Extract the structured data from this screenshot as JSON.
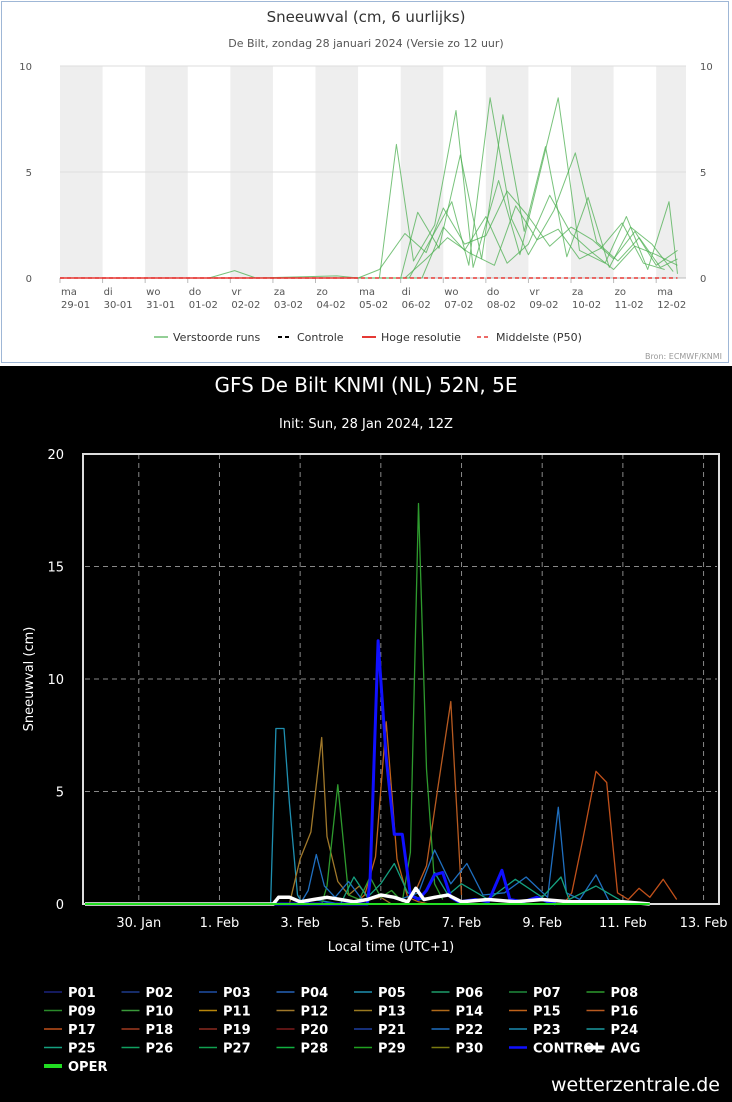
{
  "top_chart": {
    "title": "Sneeuwval (cm, 6 uurlijks)",
    "subtitle": "De Bilt, zondag 28 januari 2024 (Versie zo 12 uur)",
    "source": "Bron: ECMWF/KNMI",
    "colors": {
      "members": "#4caf50",
      "control": "#000000",
      "hires": "#e53935",
      "median": "#e53935",
      "band": "#eeeeee",
      "grid": "#dddddd"
    },
    "legend": [
      {
        "label": "Verstoorde runs",
        "style": "members"
      },
      {
        "label": "Controle",
        "style": "control"
      },
      {
        "label": "Hoge resolutie",
        "style": "hires"
      },
      {
        "label": "Middelste (P50)",
        "style": "median"
      }
    ],
    "day_ticks": [
      [
        "ma",
        "29-01"
      ],
      [
        "di",
        "30-01"
      ],
      [
        "wo",
        "31-01"
      ],
      [
        "do",
        "01-02"
      ],
      [
        "vr",
        "02-02"
      ],
      [
        "za",
        "03-02"
      ],
      [
        "zo",
        "04-02"
      ],
      [
        "ma",
        "05-02"
      ],
      [
        "di",
        "06-02"
      ],
      [
        "wo",
        "07-02"
      ],
      [
        "do",
        "08-02"
      ],
      [
        "vr",
        "09-02"
      ],
      [
        "za",
        "10-02"
      ],
      [
        "zo",
        "11-02"
      ],
      [
        "ma",
        "12-02"
      ]
    ]
  },
  "bottom_chart": {
    "title": "GFS De Bilt KNMI (NL) 52N, 5E",
    "subtitle": "Init: Sun, 28 Jan 2024, 12Z",
    "xlabel": "Local time (UTC+1)",
    "ylabel": "Sneeuwval (cm)",
    "x_ticks": [
      "30. Jan",
      "1. Feb",
      "3. Feb",
      "5. Feb",
      "7. Feb",
      "9. Feb",
      "11. Feb",
      "13. Feb"
    ],
    "watermark": "wetterzentrale.de",
    "legend": [
      {
        "name": "P01",
        "color": "#1a237e"
      },
      {
        "name": "P02",
        "color": "#1e3a8a"
      },
      {
        "name": "P03",
        "color": "#1f4fa6"
      },
      {
        "name": "P04",
        "color": "#2563b8"
      },
      {
        "name": "P05",
        "color": "#1f8fb0"
      },
      {
        "name": "P06",
        "color": "#1e9e6a"
      },
      {
        "name": "P07",
        "color": "#1f8a3c"
      },
      {
        "name": "P08",
        "color": "#2e9a2e"
      },
      {
        "name": "P09",
        "color": "#2a8a2a"
      },
      {
        "name": "P10",
        "color": "#3a9a3a"
      },
      {
        "name": "P11",
        "color": "#b8860b"
      },
      {
        "name": "P12",
        "color": "#a0782a"
      },
      {
        "name": "P13",
        "color": "#9a7a20"
      },
      {
        "name": "P14",
        "color": "#b06a1a"
      },
      {
        "name": "P15",
        "color": "#c0621a"
      },
      {
        "name": "P16",
        "color": "#b85a20"
      },
      {
        "name": "P17",
        "color": "#c0501a"
      },
      {
        "name": "P18",
        "color": "#a03a20"
      },
      {
        "name": "P19",
        "color": "#8a2a20"
      },
      {
        "name": "P20",
        "color": "#7a1a1a"
      },
      {
        "name": "P21",
        "color": "#1e3fa0"
      },
      {
        "name": "P22",
        "color": "#1f6fc0"
      },
      {
        "name": "P23",
        "color": "#1a8ab0"
      },
      {
        "name": "P24",
        "color": "#1a9aa0"
      },
      {
        "name": "P25",
        "color": "#15a080"
      },
      {
        "name": "P26",
        "color": "#10a060"
      },
      {
        "name": "P27",
        "color": "#10a050"
      },
      {
        "name": "P28",
        "color": "#10b040"
      },
      {
        "name": "P29",
        "color": "#20a020"
      },
      {
        "name": "P30",
        "color": "#7a7a10"
      },
      {
        "name": "CONTROL",
        "color": "#1010ff"
      },
      {
        "name": "AVG",
        "color": "#ffffff"
      },
      {
        "name": "OPER",
        "color": "#22dd22"
      }
    ]
  },
  "chart_data": [
    {
      "type": "line",
      "title": "Sneeuwval (cm, 6 uurlijks)",
      "subtitle": "De Bilt, zondag 28 januari 2024 (Versie zo 12 uur)",
      "x_unit": "days",
      "x_start_label": "ma 29-01",
      "ylim": [
        0,
        10
      ],
      "yticks": [
        0,
        5,
        10
      ],
      "grid": true,
      "legend_position": "bottom",
      "series": [
        {
          "name": "Verstoorde runs",
          "x": [
            0,
            3.5,
            4.1,
            4.6,
            6.5,
            7.0,
            7.5,
            8.1,
            8.6,
            9.0,
            9.5,
            10.0,
            10.5,
            11.0,
            11.5,
            12.0,
            12.5,
            13.0,
            13.5,
            14.0,
            14.5
          ],
          "y": [
            0,
            0,
            0.35,
            0,
            0.1,
            0,
            0.4,
            2.1,
            1.2,
            3.3,
            1.6,
            2.0,
            4.1,
            2.9,
            1.5,
            2.4,
            1.8,
            0.9,
            2.2,
            0.6,
            1.3
          ]
        },
        {
          "name": "Verstoorde runs",
          "x": [
            0,
            7.5,
            7.9,
            8.3,
            8.8,
            9.3,
            9.7,
            10.3,
            10.8,
            11.3,
            11.7,
            12.2,
            12.8,
            13.3,
            13.8,
            14.3,
            14.5
          ],
          "y": [
            0,
            0,
            6.3,
            0.8,
            2.5,
            7.9,
            0.5,
            4.6,
            1.1,
            5.2,
            8.5,
            1.3,
            0.7,
            2.9,
            0.4,
            3.6,
            0.2
          ]
        },
        {
          "name": "Verstoorde runs",
          "x": [
            0,
            8.0,
            8.4,
            8.9,
            9.4,
            9.9,
            10.4,
            10.9,
            11.4,
            11.9,
            12.4,
            12.9,
            13.4,
            13.9,
            14.4
          ],
          "y": [
            0,
            0,
            3.1,
            1.4,
            5.8,
            0.9,
            7.7,
            2.2,
            6.2,
            1.0,
            3.8,
            0.5,
            2.4,
            1.6,
            0.3
          ]
        },
        {
          "name": "Verstoorde runs",
          "x": [
            0,
            8.2,
            8.7,
            9.2,
            9.6,
            10.1,
            10.6,
            11.0,
            11.6,
            12.1,
            12.6,
            13.1,
            13.6,
            14.1,
            14.5
          ],
          "y": [
            0,
            0,
            1.8,
            3.6,
            0.6,
            8.5,
            2.8,
            1.1,
            3.2,
            5.9,
            1.7,
            0.8,
            1.9,
            0.5,
            0.9
          ]
        },
        {
          "name": "Verstoorde runs",
          "x": [
            0,
            8.5,
            9.0,
            9.5,
            10.0,
            10.5,
            11.0,
            11.5,
            12.0,
            12.5,
            13.0,
            13.5,
            14.0,
            14.5
          ],
          "y": [
            0,
            0,
            2.4,
            1.3,
            2.9,
            0.7,
            1.6,
            3.9,
            2.1,
            1.2,
            0.4,
            1.5,
            1.1,
            0.6
          ]
        },
        {
          "name": "Verstoorde runs",
          "x": [
            0,
            8.1,
            8.6,
            9.1,
            9.6,
            10.2,
            10.7,
            11.2,
            11.7,
            12.2,
            12.7,
            13.2,
            13.7,
            14.2
          ],
          "y": [
            0,
            0,
            0.9,
            1.9,
            1.2,
            0.6,
            3.4,
            1.8,
            2.3,
            0.9,
            1.4,
            2.6,
            0.7,
            0.4
          ]
        },
        {
          "name": "Controle",
          "x": [
            0,
            14.5
          ],
          "y": [
            0,
            0
          ]
        },
        {
          "name": "Hoge resolutie",
          "x": [
            0,
            7.0
          ],
          "y": [
            0,
            0
          ]
        },
        {
          "name": "Middelste (P50)",
          "x": [
            0,
            14.5
          ],
          "y": [
            0,
            0
          ]
        }
      ]
    },
    {
      "type": "line",
      "title": "GFS De Bilt KNMI (NL) 52N, 5E",
      "subtitle": "Init: Sun, 28 Jan 2024, 12Z",
      "xlabel": "Local time (UTC+1)",
      "ylabel": "Sneeuwval (cm)",
      "x_unit": "days",
      "x_start_label": "28 Jan 2024 12Z",
      "x_ticks": [
        "30. Jan",
        "1. Feb",
        "3. Feb",
        "5. Feb",
        "7. Feb",
        "9. Feb",
        "11. Feb",
        "13. Feb"
      ],
      "ylim": [
        0,
        20
      ],
      "yticks": [
        0,
        5,
        10,
        15,
        20
      ],
      "grid": true,
      "legend_position": "bottom",
      "series": [
        {
          "name": "P05",
          "x": [
            0,
            6.9,
            7.1,
            7.4,
            7.6,
            7.9,
            8.1,
            8.5,
            9.0,
            9.5,
            10.0
          ],
          "y": [
            0,
            0,
            7.8,
            7.8,
            4.5,
            0.4,
            0,
            0.2,
            0.1,
            0,
            0
          ]
        },
        {
          "name": "P12",
          "x": [
            0,
            7.6,
            8.0,
            8.4,
            8.8,
            9.0,
            9.4,
            9.8,
            10.2,
            10.6,
            11.0,
            11.4
          ],
          "y": [
            0,
            0,
            2.0,
            3.2,
            7.4,
            3.0,
            1.0,
            0.4,
            0.8,
            0.2,
            0.3,
            0
          ]
        },
        {
          "name": "P15",
          "x": [
            0,
            10.0,
            10.4,
            10.8,
            11.2,
            11.6,
            12.0,
            12.4,
            12.8
          ],
          "y": [
            0,
            0,
            0.4,
            2.1,
            8.1,
            2.0,
            0.3,
            0.1,
            0
          ]
        },
        {
          "name": "P16",
          "x": [
            0,
            12.0,
            12.3,
            12.7,
            13.1,
            13.6,
            14.0
          ],
          "y": [
            0,
            0,
            0.6,
            1.7,
            5.0,
            9.0,
            0.4
          ]
        },
        {
          "name": "P17",
          "x": [
            0,
            17.8,
            18.1,
            18.5,
            19.0,
            19.4,
            19.8,
            20.2,
            20.6,
            21.0,
            21.5,
            22.0
          ],
          "y": [
            0,
            0,
            0.5,
            2.8,
            5.9,
            5.4,
            0.5,
            0.2,
            0.7,
            0.3,
            1.1,
            0.2
          ]
        },
        {
          "name": "P08",
          "x": [
            0,
            8.8,
            9.0,
            9.4,
            9.8,
            10.2,
            10.6,
            11.0,
            11.4,
            11.8,
            12.1,
            12.4,
            12.7,
            13.0,
            13.3
          ],
          "y": [
            0,
            0,
            0.8,
            5.3,
            0.4,
            0.2,
            1.2,
            0.3,
            0.6,
            0.1,
            2.3,
            17.8,
            6.0,
            0.9,
            0.2
          ]
        },
        {
          "name": "P22",
          "x": [
            0,
            8.0,
            8.3,
            8.6,
            8.9,
            9.3,
            9.8,
            10.3,
            11.0,
            11.7,
            12.4,
            13.0,
            13.6,
            14.2,
            14.8,
            15.6,
            16.4,
            17.2,
            17.6,
            17.9,
            18.4,
            19.0,
            19.5
          ],
          "y": [
            0,
            0,
            0.6,
            2.2,
            0.8,
            0.3,
            1.0,
            0.2,
            0.4,
            0.2,
            0.5,
            2.4,
            0.9,
            1.8,
            0.4,
            0.5,
            1.2,
            0.3,
            4.3,
            0.5,
            0.2,
            1.3,
            0.1
          ]
        },
        {
          "name": "P25",
          "x": [
            0,
            9.5,
            10.0,
            10.5,
            11.0,
            11.5,
            12.0,
            12.5,
            13.0,
            13.5,
            14.0,
            15.0,
            16.0,
            17.0,
            17.7,
            18.0,
            19.0,
            20.0
          ],
          "y": [
            0,
            0,
            1.2,
            0.3,
            0.9,
            1.8,
            0.5,
            0.2,
            1.4,
            0.4,
            0.9,
            0.2,
            1.1,
            0.3,
            1.2,
            0.2,
            0.8,
            0.1
          ]
        },
        {
          "name": "CONTROL",
          "x": [
            0,
            10.5,
            10.6,
            10.9,
            11.2,
            11.5,
            11.8,
            12.1,
            12.4,
            12.7,
            13.0,
            13.3,
            13.6,
            13.9,
            14.5,
            15.0,
            15.5,
            15.8,
            16.3,
            16.8,
            17.2,
            17.5
          ],
          "y": [
            0,
            0,
            1.1,
            11.7,
            6.5,
            3.1,
            3.1,
            0.4,
            0.2,
            0.6,
            1.3,
            1.4,
            0.3,
            0.1,
            0.2,
            0.1,
            1.5,
            0.2,
            0.1,
            0.3,
            0.1,
            0
          ]
        },
        {
          "name": "AVG",
          "x": [
            0,
            7.0,
            7.2,
            7.6,
            8.0,
            8.5,
            9.0,
            9.5,
            10.0,
            10.5,
            11.0,
            11.5,
            12.0,
            12.3,
            12.6,
            13.0,
            13.5,
            14.0,
            15.0,
            16.0,
            17.0,
            18.0,
            19.0,
            20.0,
            21.0
          ],
          "y": [
            0,
            0,
            0.3,
            0.3,
            0.1,
            0.2,
            0.3,
            0.2,
            0.1,
            0.2,
            0.4,
            0.3,
            0.1,
            0.7,
            0.2,
            0.3,
            0.4,
            0.1,
            0.2,
            0.1,
            0.2,
            0.1,
            0.1,
            0.1,
            0
          ]
        },
        {
          "name": "OPER",
          "x": [
            0,
            21.0
          ],
          "y": [
            0,
            0
          ]
        }
      ]
    }
  ]
}
